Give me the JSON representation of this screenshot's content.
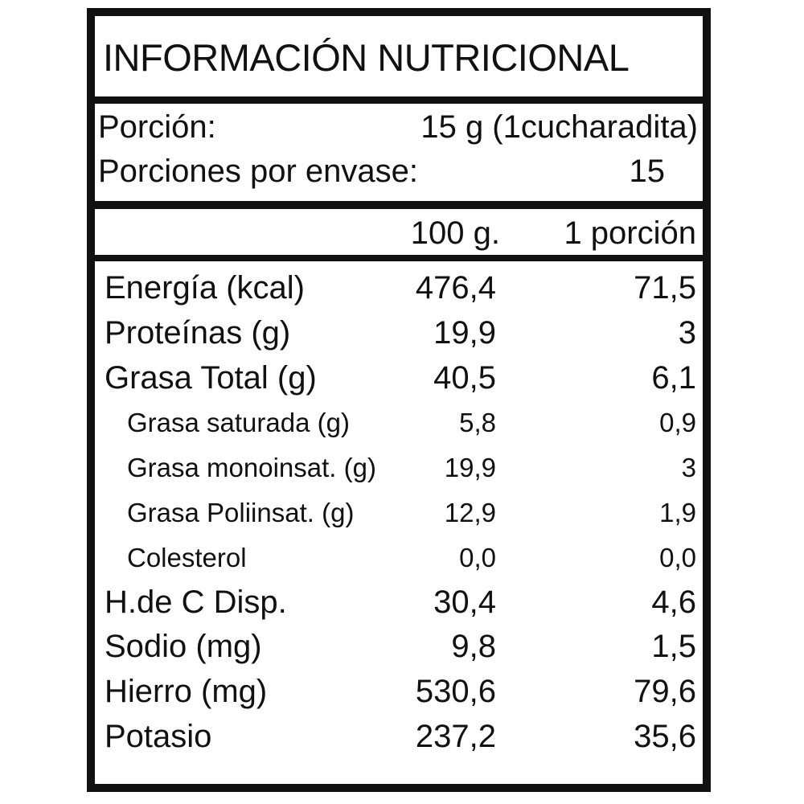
{
  "title": "INFORMACIÓN NUTRICIONAL",
  "serving": [
    {
      "label": "Porción:",
      "value": "15 g (1cucharadita)"
    },
    {
      "label": "Porciones por envase:",
      "value": "15"
    }
  ],
  "columns": [
    "100 g.",
    "1 porción"
  ],
  "rows": [
    {
      "name": "Energía (kcal)",
      "per_100g": "476,4",
      "per_portion": "71,5",
      "indent": false
    },
    {
      "name": "Proteínas (g)",
      "per_100g": "19,9",
      "per_portion": "3",
      "indent": false
    },
    {
      "name": "Grasa Total (g)",
      "per_100g": "40,5",
      "per_portion": "6,1",
      "indent": false
    },
    {
      "name": "Grasa saturada (g)",
      "per_100g": "5,8",
      "per_portion": "0,9",
      "indent": true
    },
    {
      "name": "Grasa monoinsat. (g)",
      "per_100g": "19,9",
      "per_portion": "3",
      "indent": true
    },
    {
      "name": "Grasa Poliinsat. (g)",
      "per_100g": "12,9",
      "per_portion": "1,9",
      "indent": true
    },
    {
      "name": "Colesterol",
      "per_100g": "0,0",
      "per_portion": "0,0",
      "indent": true
    },
    {
      "name": "H.de C Disp.",
      "per_100g": "30,4",
      "per_portion": "4,6",
      "indent": false
    },
    {
      "name": "Sodio (mg)",
      "per_100g": "9,8",
      "per_portion": "1,5",
      "indent": false
    },
    {
      "name": "Hierro (mg)",
      "per_100g": "530,6",
      "per_portion": "79,6",
      "indent": false
    },
    {
      "name": "Potasio",
      "per_100g": "237,2",
      "per_portion": "35,6",
      "indent": false
    }
  ]
}
